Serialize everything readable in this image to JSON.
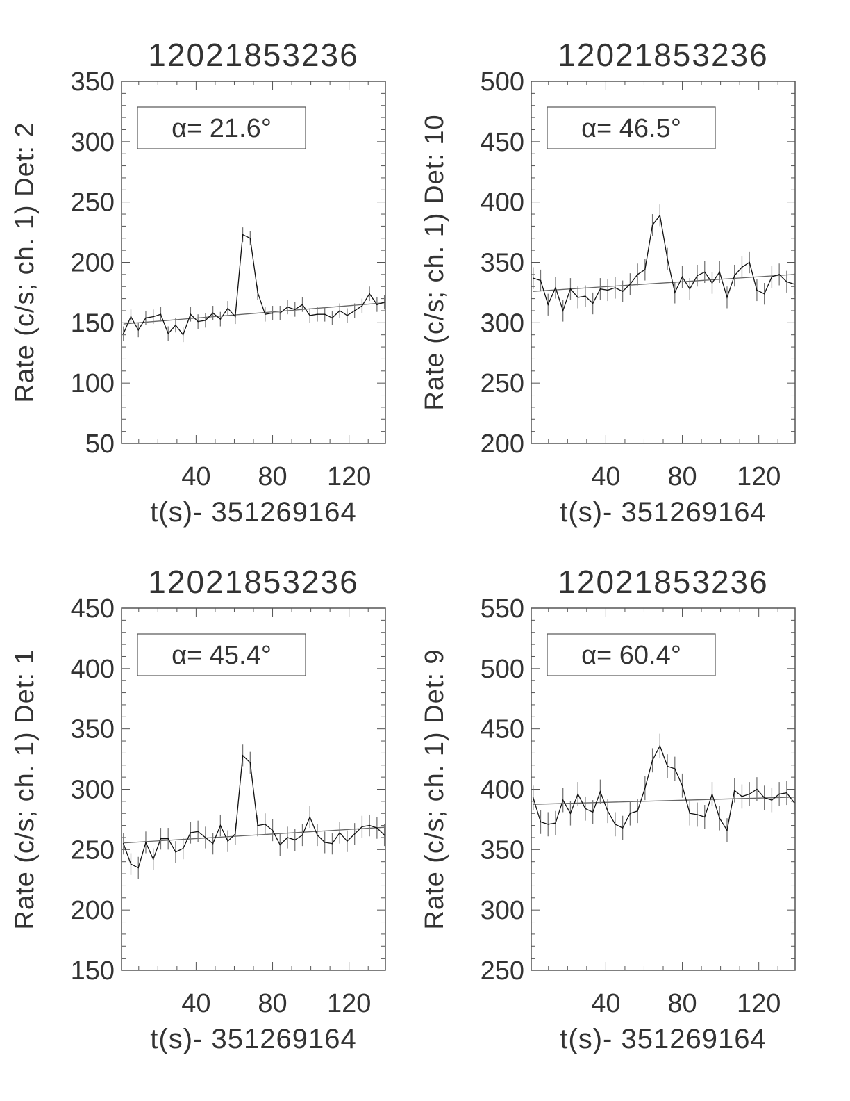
{
  "chart_data": [
    {
      "type": "line",
      "title": "12021853236",
      "ylabel": "Rate (c/s; ch. 1) Det: 2",
      "xlabel": "t(s)- 351269164",
      "annotation": "α= 21.6°",
      "xlim": [
        1,
        139
      ],
      "ylim": [
        50,
        350
      ],
      "x_ticks": [
        "40",
        "80",
        "120"
      ],
      "y_ticks": [
        "50",
        "100",
        "150",
        "200",
        "250",
        "300",
        "350"
      ],
      "grid": false,
      "x": [
        2,
        5.9,
        9.8,
        13.7,
        17.6,
        21.5,
        25.4,
        29.3,
        33.2,
        37.1,
        41,
        44.9,
        48.8,
        52.7,
        56.6,
        60.5,
        64.4,
        68.3,
        72.2,
        76.1,
        80,
        83.9,
        87.8,
        91.7,
        95.6,
        99.5,
        103.4,
        107.3,
        111.2,
        115.1,
        119,
        122.9,
        126.8,
        130.7,
        134.6,
        138.5
      ],
      "values": [
        141,
        155,
        144,
        154,
        155,
        157,
        141,
        148,
        140,
        157,
        151,
        152,
        158,
        153,
        162,
        155,
        223,
        220,
        175,
        157,
        158,
        158,
        163,
        161,
        165,
        156,
        157,
        157,
        154,
        160,
        156,
        160,
        164,
        174,
        165,
        167
      ],
      "error": 6,
      "fit": {
        "x": [
          2,
          138.5
        ],
        "y": [
          149,
          166.5
        ]
      }
    },
    {
      "type": "line",
      "title": "12021853236",
      "ylabel": "Rate (c/s; ch. 1) Det: 10",
      "xlabel": "t(s)- 351269164",
      "annotation": "α= 46.5°",
      "xlim": [
        1,
        139
      ],
      "ylim": [
        200,
        500
      ],
      "x_ticks": [
        "40",
        "80",
        "120"
      ],
      "y_ticks": [
        "200",
        "250",
        "300",
        "350",
        "400",
        "450",
        "500"
      ],
      "grid": false,
      "x": [
        2,
        5.9,
        9.8,
        13.7,
        17.6,
        21.5,
        25.4,
        29.3,
        33.2,
        37.1,
        41,
        44.9,
        48.8,
        52.7,
        56.6,
        60.5,
        64.4,
        68.3,
        72.2,
        76.1,
        80,
        83.9,
        87.8,
        91.7,
        95.6,
        99.5,
        103.4,
        107.3,
        111.2,
        115.1,
        119,
        122.9,
        126.8,
        130.7,
        134.6,
        138.5
      ],
      "values": [
        337,
        335,
        315,
        329,
        310,
        328,
        321,
        322,
        316,
        328,
        327,
        329,
        326,
        332,
        340,
        344,
        381,
        389,
        353,
        325,
        338,
        328,
        339,
        342,
        333,
        342,
        321,
        339,
        346,
        350,
        327,
        324,
        338,
        340,
        334,
        332
      ],
      "error": 9,
      "fit": {
        "x": [
          2,
          138.5
        ],
        "y": [
          326,
          340
        ]
      }
    },
    {
      "type": "line",
      "title": "12021853236",
      "ylabel": "Rate (c/s; ch. 1) Det: 1",
      "xlabel": "t(s)- 351269164",
      "annotation": "α= 45.4°",
      "xlim": [
        1,
        139
      ],
      "ylim": [
        150,
        450
      ],
      "x_ticks": [
        "40",
        "80",
        "120"
      ],
      "y_ticks": [
        "150",
        "200",
        "250",
        "300",
        "350",
        "400",
        "450"
      ],
      "grid": false,
      "x": [
        2,
        5.9,
        9.8,
        13.7,
        17.6,
        21.5,
        25.4,
        29.3,
        33.2,
        37.1,
        41,
        44.9,
        48.8,
        52.7,
        56.6,
        60.5,
        64.4,
        68.3,
        72.2,
        76.1,
        80,
        83.9,
        87.8,
        91.7,
        95.6,
        99.5,
        103.4,
        107.3,
        111.2,
        115.1,
        119,
        122.9,
        126.8,
        130.7,
        134.6,
        138.5
      ],
      "values": [
        255,
        238,
        235,
        256,
        242,
        259,
        259,
        248,
        251,
        264,
        265,
        260,
        255,
        270,
        257,
        263,
        328,
        322,
        270,
        271,
        266,
        254,
        260,
        258,
        262,
        277,
        262,
        256,
        255,
        264,
        257,
        263,
        269,
        270,
        268,
        262
      ],
      "error": 9,
      "fit": {
        "x": [
          2,
          138.5
        ],
        "y": [
          255.5,
          268.5
        ]
      }
    },
    {
      "type": "line",
      "title": "12021853236",
      "ylabel": "Rate (c/s; ch. 1) Det: 9",
      "xlabel": "t(s)- 351269164",
      "annotation": "α= 60.4°",
      "xlim": [
        1,
        139
      ],
      "ylim": [
        250,
        550
      ],
      "x_ticks": [
        "40",
        "80",
        "120"
      ],
      "y_ticks": [
        "250",
        "300",
        "350",
        "400",
        "450",
        "500",
        "550"
      ],
      "grid": false,
      "x": [
        2,
        5.9,
        9.8,
        13.7,
        17.6,
        21.5,
        25.4,
        29.3,
        33.2,
        37.1,
        41,
        44.9,
        48.8,
        52.7,
        56.6,
        60.5,
        64.4,
        68.3,
        72.2,
        76.1,
        80,
        83.9,
        87.8,
        91.7,
        95.6,
        99.5,
        103.4,
        107.3,
        111.2,
        115.1,
        119,
        122.9,
        126.8,
        130.7,
        134.6,
        138.5
      ],
      "values": [
        393,
        373,
        371,
        372,
        391,
        380,
        396,
        384,
        381,
        398,
        382,
        371,
        368,
        380,
        382,
        401,
        424,
        436,
        419,
        417,
        403,
        380,
        379,
        377,
        396,
        376,
        366,
        399,
        394,
        396,
        400,
        393,
        391,
        396,
        397,
        389
      ],
      "error": 10,
      "fit": {
        "x": [
          2,
          138.5
        ],
        "y": [
          387.5,
          393.5
        ]
      }
    }
  ],
  "colors": {
    "data_line": "#111111",
    "fit_line": "#666666",
    "axes": "#555555",
    "text": "#333333"
  }
}
